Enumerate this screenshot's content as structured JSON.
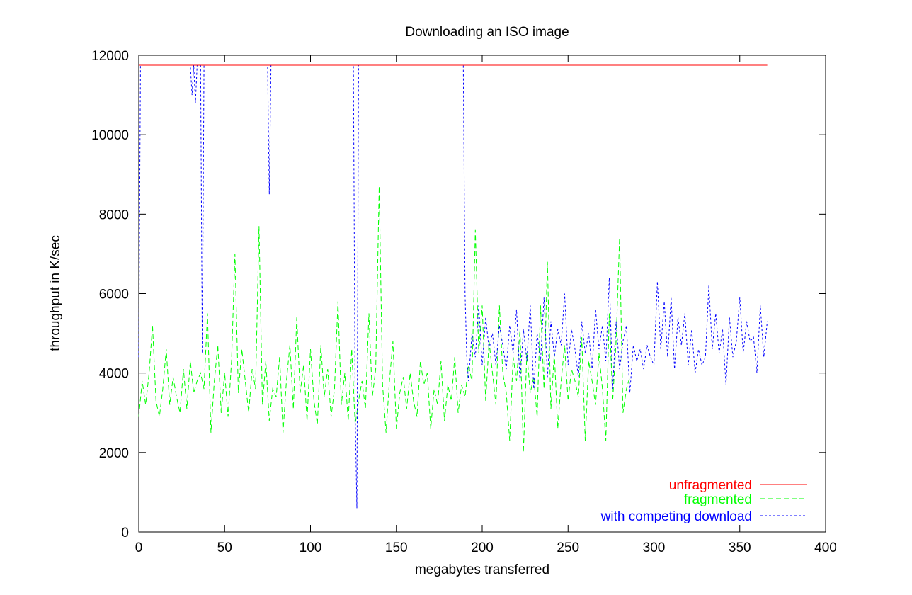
{
  "chart_data": {
    "type": "line",
    "title": "Downloading an ISO image",
    "xlabel": "megabytes transferred",
    "ylabel": "throughput in K/sec",
    "xlim": [
      0,
      400
    ],
    "ylim": [
      0,
      12000
    ],
    "xticks": [
      0,
      50,
      100,
      150,
      200,
      250,
      300,
      350,
      400
    ],
    "yticks": [
      0,
      2000,
      4000,
      6000,
      8000,
      10000,
      12000
    ],
    "grid": false,
    "legend_position": "bottom-right",
    "series": [
      {
        "name": "unfragmented",
        "color": "#ff0000",
        "dash": "solid",
        "x": [
          0,
          366
        ],
        "y": [
          11750,
          11750
        ]
      },
      {
        "name": "fragmented",
        "color": "#00ff00",
        "dash": "dashed",
        "x": [
          0,
          2,
          4,
          6,
          8,
          10,
          12,
          14,
          16,
          18,
          20,
          22,
          24,
          26,
          28,
          30,
          32,
          34,
          36,
          38,
          40,
          42,
          44,
          46,
          48,
          50,
          52,
          54,
          56,
          58,
          60,
          62,
          64,
          66,
          68,
          70,
          72,
          74,
          76,
          78,
          80,
          82,
          84,
          86,
          88,
          90,
          92,
          94,
          96,
          98,
          100,
          102,
          104,
          106,
          108,
          110,
          112,
          114,
          116,
          118,
          120,
          122,
          124,
          126,
          128,
          130,
          132,
          134,
          136,
          138,
          140,
          142,
          144,
          146,
          148,
          150,
          152,
          154,
          156,
          158,
          160,
          162,
          164,
          166,
          168,
          170,
          172,
          174,
          176,
          178,
          180,
          182,
          184,
          186,
          188,
          190,
          192,
          194,
          196,
          198,
          200,
          202,
          204,
          206,
          208,
          210,
          212,
          214,
          216,
          218,
          220,
          222,
          224,
          226,
          228,
          230,
          232,
          234,
          236,
          238,
          240,
          242,
          244,
          246,
          248,
          250,
          252,
          254,
          256,
          258,
          260,
          262,
          264,
          266,
          268,
          270,
          272,
          274,
          276,
          278,
          280,
          282,
          284,
          286
        ],
        "y": [
          2900,
          3800,
          3200,
          4000,
          5200,
          3300,
          2900,
          3600,
          4600,
          3200,
          3900,
          3400,
          3000,
          4100,
          3100,
          4300,
          3500,
          3800,
          4000,
          3600,
          5500,
          2500,
          3800,
          4700,
          3000,
          4000,
          2900,
          4300,
          7000,
          3500,
          4600,
          3800,
          3000,
          4100,
          3600,
          7700,
          3200,
          4300,
          2800,
          3600,
          3400,
          4400,
          2500,
          3800,
          4700,
          3100,
          5400,
          3500,
          4200,
          2800,
          4600,
          3300,
          2700,
          4700,
          3400,
          4100,
          2900,
          3600,
          5800,
          3200,
          4000,
          2800,
          4600,
          2700,
          3300,
          3800,
          3100,
          5500,
          3400,
          4100,
          8700,
          3700,
          2500,
          3800,
          4800,
          2600,
          3500,
          3900,
          3100,
          4000,
          3300,
          2900,
          4300,
          3700,
          4000,
          2600,
          3600,
          3200,
          4300,
          2800,
          3700,
          3300,
          4400,
          3000,
          3700,
          3400,
          4200,
          3800,
          7600,
          4500,
          5700,
          3300,
          4800,
          4000,
          3200,
          5700,
          4000,
          3500,
          2300,
          4400,
          3800,
          5100,
          2000,
          4500,
          3500,
          3900,
          2900,
          5700,
          3600,
          6800,
          3100,
          4500,
          2600,
          3800,
          4700,
          3300,
          4100,
          3800,
          3400,
          4900,
          2300,
          4300,
          3800,
          3200,
          4500,
          3600,
          2300,
          5500,
          3300,
          4800,
          7400,
          3000,
          3600,
          3900
        ]
      },
      {
        "name": "with competing download",
        "color": "#0000ff",
        "dash": "dotted",
        "x": [
          0,
          1,
          2,
          4,
          10,
          20,
          30,
          31,
          32,
          33,
          34,
          35,
          36,
          37,
          38,
          39,
          40,
          50,
          60,
          70,
          75,
          76,
          77,
          78,
          80,
          100,
          120,
          125,
          126,
          127,
          128,
          129,
          130,
          140,
          150,
          160,
          170,
          180,
          188,
          189,
          190,
          191,
          192,
          194,
          196,
          198,
          200,
          202,
          204,
          206,
          208,
          210,
          212,
          214,
          216,
          218,
          220,
          222,
          224,
          226,
          228,
          230,
          232,
          234,
          236,
          238,
          240,
          242,
          244,
          246,
          248,
          250,
          252,
          254,
          256,
          258,
          260,
          262,
          264,
          266,
          268,
          270,
          272,
          274,
          276,
          278,
          280,
          282,
          284,
          286,
          288,
          290,
          292,
          294,
          296,
          298,
          300,
          302,
          304,
          306,
          308,
          310,
          312,
          314,
          316,
          318,
          320,
          322,
          324,
          326,
          328,
          330,
          332,
          334,
          336,
          338,
          340,
          342,
          344,
          346,
          348,
          350,
          352,
          354,
          356,
          358,
          360,
          362,
          364,
          366
        ],
        "y": [
          4400,
          11750,
          11750,
          11750,
          11750,
          11750,
          11750,
          11000,
          11750,
          10800,
          11750,
          11750,
          11750,
          4500,
          11750,
          11750,
          11750,
          11750,
          11750,
          11750,
          11750,
          8500,
          11750,
          11750,
          11750,
          11750,
          11750,
          11750,
          3000,
          600,
          11750,
          11750,
          11750,
          11750,
          11750,
          11750,
          11750,
          11750,
          11750,
          11750,
          6000,
          4400,
          3800,
          5000,
          4400,
          5700,
          4200,
          5400,
          4600,
          5000,
          4200,
          5200,
          4700,
          4100,
          5200,
          4500,
          5600,
          3800,
          5100,
          4300,
          5700,
          3600,
          5000,
          4300,
          5900,
          3900,
          5300,
          4400,
          5100,
          4700,
          6000,
          4200,
          5100,
          4600,
          3900,
          5300,
          4500,
          5000,
          4100,
          5600,
          4600,
          5200,
          4300,
          6400,
          3600,
          5300,
          4100,
          4800,
          5200,
          3500,
          4700,
          4300,
          4600,
          4100,
          4700,
          4400,
          4200,
          6300,
          4600,
          5800,
          4400,
          5900,
          4100,
          5400,
          4700,
          5500,
          4200,
          5100,
          4000,
          4600,
          4200,
          4400,
          6200,
          4600,
          5500,
          4500,
          5100,
          3700,
          5400,
          4400,
          4800,
          5900,
          4500,
          5300,
          4800,
          4900,
          4000,
          5700,
          4400,
          5300
        ]
      }
    ]
  }
}
